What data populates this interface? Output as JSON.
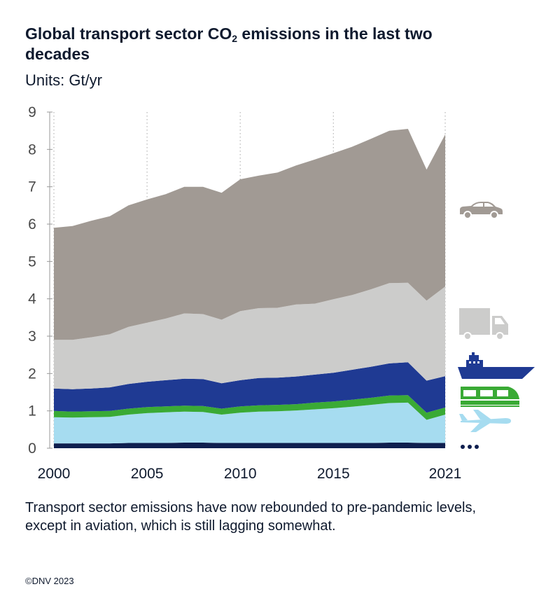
{
  "header": {
    "title_main": "Global transport sector CO",
    "title_sub": "2",
    "title_rest": " emissions in the last two decades",
    "units": "Units: Gt/yr"
  },
  "caption": "Transport sector emissions have now rebounded to pre-pandemic levels, except in aviation, which is still lagging somewhat.",
  "copyright": "©DNV 2023",
  "chart_data": {
    "type": "area",
    "stacked": true,
    "title": "Global transport sector CO2 emissions in the last two decades",
    "ylabel": "Gt/yr",
    "ylim": [
      0,
      9
    ],
    "yticks": [
      0,
      1,
      2,
      3,
      4,
      5,
      6,
      7,
      8,
      9
    ],
    "xlim": [
      2000,
      2021
    ],
    "xticks": [
      2000,
      2005,
      2010,
      2015,
      2021
    ],
    "grid": "vertical dotted",
    "x": [
      2000,
      2001,
      2002,
      2003,
      2004,
      2005,
      2006,
      2007,
      2008,
      2009,
      2010,
      2011,
      2012,
      2013,
      2014,
      2015,
      2016,
      2017,
      2018,
      2019,
      2020,
      2021
    ],
    "series": [
      {
        "name": "Other",
        "icon": "dots-icon",
        "color": "#0f1f4f",
        "values": [
          0.13,
          0.13,
          0.13,
          0.13,
          0.14,
          0.14,
          0.14,
          0.15,
          0.15,
          0.14,
          0.14,
          0.14,
          0.14,
          0.14,
          0.14,
          0.14,
          0.14,
          0.14,
          0.15,
          0.15,
          0.14,
          0.14
        ]
      },
      {
        "name": "Aviation",
        "icon": "plane-icon",
        "color": "#a6dcf0",
        "values": [
          0.7,
          0.69,
          0.7,
          0.71,
          0.76,
          0.8,
          0.82,
          0.83,
          0.82,
          0.76,
          0.81,
          0.84,
          0.85,
          0.87,
          0.9,
          0.93,
          0.97,
          1.02,
          1.06,
          1.07,
          0.62,
          0.76
        ]
      },
      {
        "name": "Rail",
        "icon": "train-icon",
        "color": "#3aaa35",
        "values": [
          0.17,
          0.16,
          0.16,
          0.16,
          0.16,
          0.16,
          0.16,
          0.16,
          0.16,
          0.16,
          0.17,
          0.17,
          0.17,
          0.17,
          0.18,
          0.18,
          0.19,
          0.19,
          0.2,
          0.2,
          0.19,
          0.19
        ]
      },
      {
        "name": "Shipping",
        "icon": "ship-icon",
        "color": "#1f3a93",
        "values": [
          0.6,
          0.6,
          0.61,
          0.63,
          0.66,
          0.68,
          0.7,
          0.72,
          0.72,
          0.68,
          0.7,
          0.73,
          0.73,
          0.74,
          0.75,
          0.77,
          0.8,
          0.83,
          0.86,
          0.88,
          0.86,
          0.84
        ]
      },
      {
        "name": "Road freight",
        "icon": "truck-icon",
        "color": "#cccccb",
        "values": [
          1.3,
          1.32,
          1.37,
          1.42,
          1.53,
          1.58,
          1.65,
          1.75,
          1.74,
          1.7,
          1.85,
          1.87,
          1.87,
          1.93,
          1.9,
          1.97,
          2.0,
          2.07,
          2.15,
          2.13,
          2.14,
          2.4
        ]
      },
      {
        "name": "Passenger cars",
        "icon": "car-icon",
        "color": "#a19a94",
        "values": [
          3.0,
          3.05,
          3.12,
          3.16,
          3.25,
          3.3,
          3.33,
          3.39,
          3.41,
          3.4,
          3.53,
          3.55,
          3.62,
          3.72,
          3.86,
          3.91,
          3.97,
          4.03,
          4.08,
          4.12,
          3.51,
          4.07
        ]
      }
    ]
  }
}
